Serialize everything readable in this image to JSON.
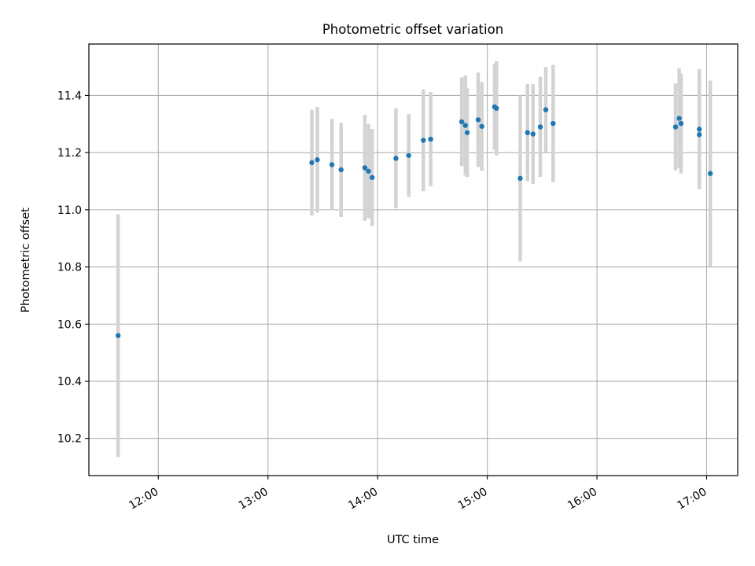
{
  "chart_data": {
    "type": "scatter",
    "title": "Photometric offset variation",
    "xlabel": "UTC time",
    "ylabel": "Photometric offset",
    "x_format": "HH:MM",
    "xlim": [
      "11:22",
      "17:17"
    ],
    "ylim": [
      10.07,
      11.58
    ],
    "x_ticks": [
      "12:00",
      "13:00",
      "14:00",
      "15:00",
      "16:00",
      "17:00"
    ],
    "y_ticks": [
      10.2,
      10.4,
      10.6,
      10.8,
      11.0,
      11.2,
      11.4
    ],
    "grid": true,
    "marker_color": "#1f77b4",
    "errorbar_color": "#d3d3d3",
    "points": [
      {
        "x": "11:38",
        "y": 10.56,
        "err": 0.425
      },
      {
        "x": "13:24",
        "y": 11.165,
        "err": 0.185
      },
      {
        "x": "13:27",
        "y": 11.175,
        "err": 0.185
      },
      {
        "x": "13:35",
        "y": 11.158,
        "err": 0.16
      },
      {
        "x": "13:40",
        "y": 11.14,
        "err": 0.165
      },
      {
        "x": "13:53",
        "y": 11.147,
        "err": 0.185
      },
      {
        "x": "13:55",
        "y": 11.135,
        "err": 0.165
      },
      {
        "x": "13:57",
        "y": 11.113,
        "err": 0.17
      },
      {
        "x": "14:10",
        "y": 11.18,
        "err": 0.175
      },
      {
        "x": "14:17",
        "y": 11.19,
        "err": 0.145
      },
      {
        "x": "14:25",
        "y": 11.243,
        "err": 0.178
      },
      {
        "x": "14:29",
        "y": 11.247,
        "err": 0.165
      },
      {
        "x": "14:46",
        "y": 11.308,
        "err": 0.155
      },
      {
        "x": "14:48",
        "y": 11.295,
        "err": 0.175
      },
      {
        "x": "14:49",
        "y": 11.27,
        "err": 0.155
      },
      {
        "x": "14:55",
        "y": 11.315,
        "err": 0.165
      },
      {
        "x": "14:57",
        "y": 11.292,
        "err": 0.155
      },
      {
        "x": "15:04",
        "y": 11.36,
        "err": 0.15
      },
      {
        "x": "15:05",
        "y": 11.355,
        "err": 0.165
      },
      {
        "x": "15:18",
        "y": 11.11,
        "err": 0.29
      },
      {
        "x": "15:22",
        "y": 11.27,
        "err": 0.17
      },
      {
        "x": "15:25",
        "y": 11.265,
        "err": 0.175
      },
      {
        "x": "15:29",
        "y": 11.29,
        "err": 0.175
      },
      {
        "x": "15:32",
        "y": 11.35,
        "err": 0.15
      },
      {
        "x": "15:36",
        "y": 11.302,
        "err": 0.205
      },
      {
        "x": "16:43",
        "y": 11.29,
        "err": 0.152
      },
      {
        "x": "16:45",
        "y": 11.32,
        "err": 0.175
      },
      {
        "x": "16:46",
        "y": 11.302,
        "err": 0.175
      },
      {
        "x": "16:56",
        "y": 11.282,
        "err": 0.21
      },
      {
        "x": "16:56",
        "y": 11.263,
        "err": 0.19
      },
      {
        "x": "17:02",
        "y": 11.127,
        "err": 0.325
      }
    ]
  }
}
